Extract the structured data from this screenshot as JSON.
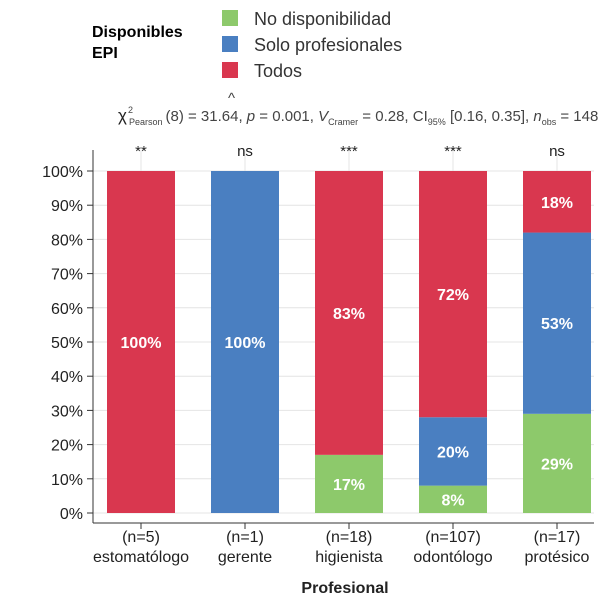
{
  "chart_data": {
    "type": "bar",
    "stacked": true,
    "legend_title": [
      "Disponibles",
      "EPI"
    ],
    "subtitle": {
      "chi": "χ",
      "chi_sup": "2",
      "chi_sub": "Pearson",
      "df": "(8) = 31.64, ",
      "p_label": "p",
      "p_val": " = 0.001, ",
      "v_label": "V",
      "v_hat": "^",
      "v_sub": "Cramer",
      "v_val": " = 0.28, CI",
      "ci_sub": "95%",
      "ci_val": " [0.16, 0.35], ",
      "n_label": "n",
      "n_sub": "obs",
      "n_val": " = 148"
    },
    "xlabel": "Profesional",
    "ylabel": "",
    "ylim": [
      0,
      100
    ],
    "yticks": [
      "0%",
      "10%",
      "20%",
      "30%",
      "40%",
      "50%",
      "60%",
      "70%",
      "80%",
      "90%",
      "100%"
    ],
    "categories": [
      "estomatólogo",
      "gerente",
      "higienista",
      "odontólogo",
      "protésico"
    ],
    "counts": [
      "(n=5)",
      "(n=1)",
      "(n=18)",
      "(n=107)",
      "(n=17)"
    ],
    "significance": [
      "**",
      "ns",
      "***",
      "***",
      "ns"
    ],
    "series": [
      {
        "name": "No disponibilidad",
        "color": "#8dc96b",
        "values": [
          0,
          0,
          17,
          8,
          29
        ],
        "labels": [
          "",
          "",
          "17%",
          "8%",
          "29%"
        ]
      },
      {
        "name": "Solo profesionales",
        "color": "#4a7fc1",
        "values": [
          0,
          100,
          0,
          20,
          53
        ],
        "labels": [
          "",
          "100%",
          "",
          "20%",
          "53%"
        ]
      },
      {
        "name": "Todos",
        "color": "#d9374f",
        "values": [
          100,
          0,
          83,
          72,
          18
        ],
        "labels": [
          "100%",
          "",
          "83%",
          "72%",
          "18%"
        ]
      }
    ]
  }
}
